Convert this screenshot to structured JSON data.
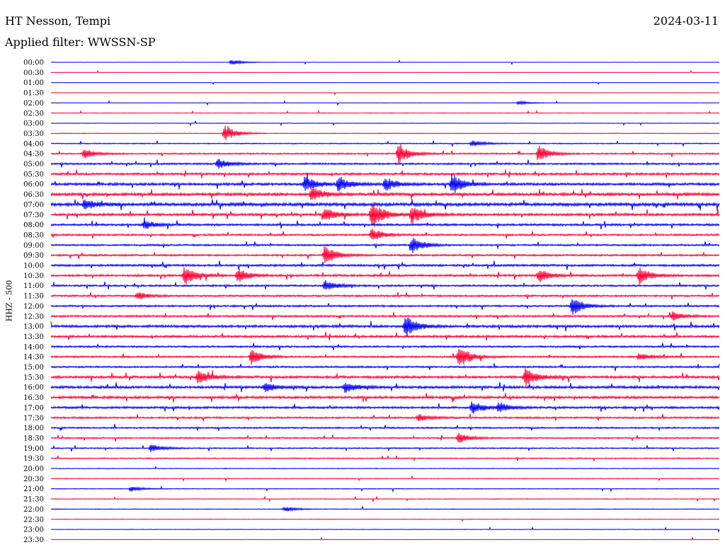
{
  "header": {
    "station": "HT Nesson, Tempi",
    "date": "2024-03-11",
    "filter": "Applied filter: WWSSN-SP"
  },
  "chart_data": {
    "type": "line",
    "ylabel": "HHZ - 500",
    "trace_colors": [
      "#0000ff",
      "#ff0033"
    ],
    "rows": [
      "00:00",
      "00:30",
      "01:00",
      "01:30",
      "02:00",
      "02:30",
      "03:00",
      "03:30",
      "04:00",
      "04:30",
      "05:00",
      "05:30",
      "06:00",
      "06:30",
      "07:00",
      "07:30",
      "08:00",
      "08:30",
      "09:00",
      "09:30",
      "10:00",
      "10:30",
      "11:00",
      "11:30",
      "12:00",
      "12:30",
      "13:00",
      "13:30",
      "14:00",
      "14:30",
      "15:00",
      "15:30",
      "16:00",
      "16:30",
      "17:00",
      "17:30",
      "18:00",
      "18:30",
      "19:00",
      "19:30",
      "20:00",
      "20:30",
      "21:00",
      "21:30",
      "22:00",
      "22:30",
      "23:00",
      "23:30"
    ],
    "noise_level": [
      0.2,
      0.1,
      0.1,
      0.2,
      0.2,
      0.3,
      0.3,
      0.4,
      0.6,
      0.8,
      1.0,
      1.2,
      1.4,
      1.6,
      1.8,
      1.4,
      1.2,
      1.0,
      1.0,
      1.0,
      1.2,
      1.2,
      1.0,
      1.0,
      1.0,
      1.0,
      1.4,
      1.2,
      1.0,
      1.0,
      1.0,
      1.4,
      1.4,
      1.4,
      1.2,
      1.0,
      0.9,
      0.8,
      0.7,
      0.6,
      0.4,
      0.4,
      0.4,
      0.4,
      0.4,
      0.3,
      0.3,
      0.2
    ],
    "events": [
      {
        "row": 0,
        "x": 0.27,
        "amp": 4
      },
      {
        "row": 4,
        "x": 0.7,
        "amp": 3
      },
      {
        "row": 7,
        "x": 0.26,
        "amp": 12
      },
      {
        "row": 8,
        "x": 0.63,
        "amp": 5
      },
      {
        "row": 9,
        "x": 0.05,
        "amp": 7
      },
      {
        "row": 9,
        "x": 0.52,
        "amp": 16
      },
      {
        "row": 9,
        "x": 0.73,
        "amp": 12
      },
      {
        "row": 10,
        "x": 0.25,
        "amp": 8
      },
      {
        "row": 12,
        "x": 0.38,
        "amp": 12
      },
      {
        "row": 12,
        "x": 0.43,
        "amp": 12
      },
      {
        "row": 12,
        "x": 0.5,
        "amp": 10
      },
      {
        "row": 12,
        "x": 0.6,
        "amp": 16
      },
      {
        "row": 13,
        "x": 0.39,
        "amp": 10
      },
      {
        "row": 14,
        "x": 0.05,
        "amp": 8
      },
      {
        "row": 15,
        "x": 0.41,
        "amp": 10
      },
      {
        "row": 15,
        "x": 0.48,
        "amp": 22
      },
      {
        "row": 15,
        "x": 0.54,
        "amp": 14
      },
      {
        "row": 16,
        "x": 0.14,
        "amp": 6
      },
      {
        "row": 17,
        "x": 0.48,
        "amp": 10
      },
      {
        "row": 18,
        "x": 0.54,
        "amp": 12
      },
      {
        "row": 19,
        "x": 0.41,
        "amp": 16
      },
      {
        "row": 21,
        "x": 0.2,
        "amp": 14
      },
      {
        "row": 21,
        "x": 0.28,
        "amp": 10
      },
      {
        "row": 21,
        "x": 0.73,
        "amp": 10
      },
      {
        "row": 21,
        "x": 0.88,
        "amp": 12
      },
      {
        "row": 22,
        "x": 0.41,
        "amp": 8
      },
      {
        "row": 23,
        "x": 0.13,
        "amp": 6
      },
      {
        "row": 24,
        "x": 0.78,
        "amp": 14
      },
      {
        "row": 25,
        "x": 0.93,
        "amp": 6
      },
      {
        "row": 26,
        "x": 0.53,
        "amp": 16
      },
      {
        "row": 29,
        "x": 0.3,
        "amp": 12
      },
      {
        "row": 29,
        "x": 0.61,
        "amp": 18
      },
      {
        "row": 29,
        "x": 0.88,
        "amp": 6
      },
      {
        "row": 31,
        "x": 0.22,
        "amp": 10
      },
      {
        "row": 31,
        "x": 0.71,
        "amp": 14
      },
      {
        "row": 32,
        "x": 0.32,
        "amp": 7
      },
      {
        "row": 32,
        "x": 0.44,
        "amp": 8
      },
      {
        "row": 34,
        "x": 0.63,
        "amp": 10
      },
      {
        "row": 34,
        "x": 0.67,
        "amp": 7
      },
      {
        "row": 35,
        "x": 0.55,
        "amp": 5
      },
      {
        "row": 37,
        "x": 0.61,
        "amp": 8
      },
      {
        "row": 38,
        "x": 0.15,
        "amp": 6
      },
      {
        "row": 42,
        "x": 0.12,
        "amp": 4
      },
      {
        "row": 44,
        "x": 0.35,
        "amp": 4
      }
    ]
  }
}
